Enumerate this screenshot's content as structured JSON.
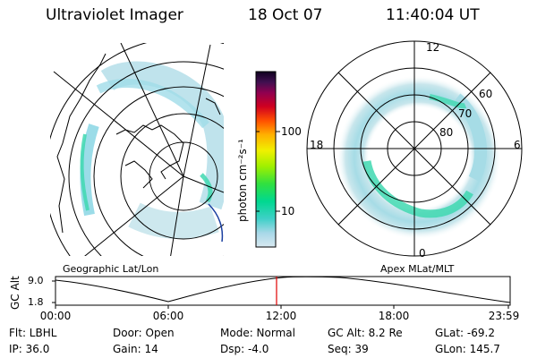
{
  "header": {
    "instrument": "Ultraviolet Imager",
    "date": "18 Oct 07",
    "time": "11:40:04 UT"
  },
  "colorbar": {
    "unit_label": "photon cm⁻²s⁻¹",
    "ticks": [
      "100",
      "10"
    ]
  },
  "panels": {
    "geo_label": "Geographic Lat/Lon",
    "apex_label": "Apex  MLat/MLT",
    "apex_mlt_labels": [
      "12",
      "18",
      "6",
      "0"
    ],
    "apex_mlat_labels": [
      "60",
      "70",
      "80"
    ]
  },
  "altitude_plot": {
    "ylabel": "GC Alt",
    "yticks": [
      "9.0",
      "1.8"
    ],
    "xticks": [
      "00:00",
      "06:00",
      "12:00",
      "18:00",
      "23:59"
    ],
    "marker_time": "11:40"
  },
  "info": {
    "filter": "Flt: LBHL",
    "ip": "IP: 36.0",
    "door": "Door: Open",
    "gain": "Gain: 14",
    "mode": "Mode: Normal",
    "dsp": "Dsp:    -4.0",
    "gc_alt": "GC Alt: 8.2 Re",
    "seq": "Seq: 39",
    "glat": "GLat: -69.2",
    "glon": "GLon: 145.7"
  },
  "colors": {
    "marker": "#e00000",
    "coastline": "#1a3fa0"
  }
}
